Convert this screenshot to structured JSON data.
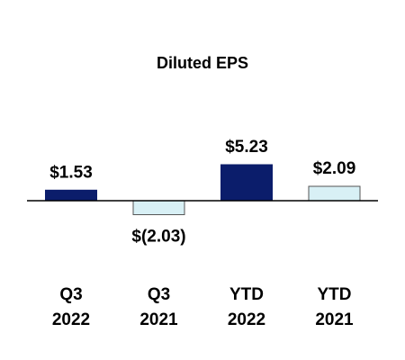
{
  "chart_data": {
    "type": "bar",
    "title": "Diluted EPS",
    "categories": [
      "Q3 2022",
      "Q3 2021",
      "YTD 2022",
      "YTD 2021"
    ],
    "values": [
      1.53,
      -2.03,
      5.23,
      2.09
    ],
    "value_labels": [
      "$1.53",
      "$(2.03)",
      "$5.23",
      "$2.09"
    ],
    "colors": [
      "#0b1d6b",
      "#d8f0f5",
      "#0b1d6b",
      "#d8f0f5"
    ]
  }
}
